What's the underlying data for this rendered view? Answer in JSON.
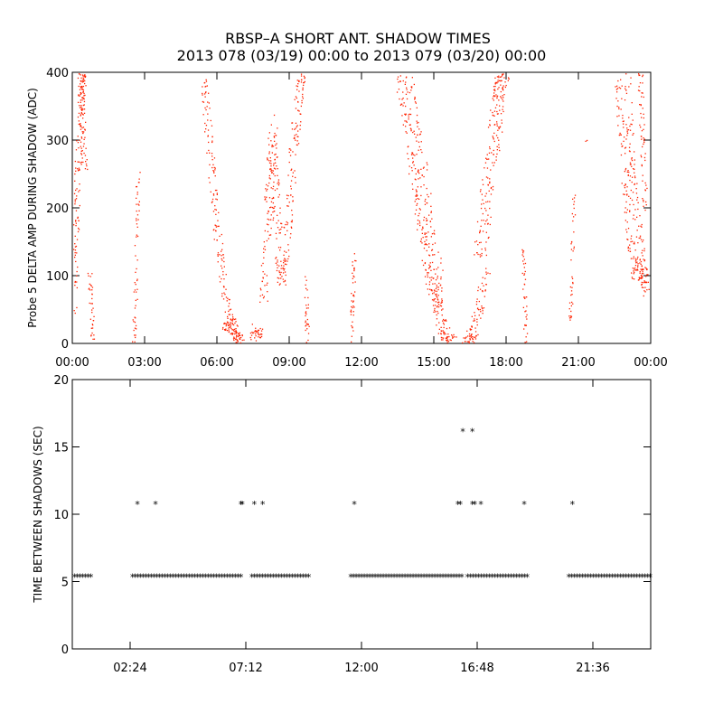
{
  "title": {
    "line1": "RBSP–A SHORT ANT. SHADOW TIMES",
    "line2": "2013 078 (03/19) 00:00 to 2013 079 (03/20) 00:00"
  },
  "chart_data": [
    {
      "type": "scatter",
      "ylabel": "Probe 5 DELTA AMP DURING SHADOW (ADC)",
      "xlabel": "",
      "x_unit": "hours",
      "xlim": [
        0,
        24
      ],
      "ylim": [
        0,
        400
      ],
      "xticks": [
        0,
        3,
        6,
        9,
        12,
        15,
        18,
        21,
        24
      ],
      "xtick_labels": [
        "00:00",
        "03:00",
        "06:00",
        "09:00",
        "12:00",
        "15:00",
        "18:00",
        "21:00",
        "00:00"
      ],
      "yticks": [
        0,
        100,
        200,
        300,
        400
      ],
      "ytick_labels": [
        "0",
        "100",
        "200",
        "300",
        "400"
      ],
      "marker_color": "#ff2200",
      "tracks": [
        {
          "points": [
            [
              0.03,
              40
            ],
            [
              0.12,
              150
            ],
            [
              0.22,
              270
            ],
            [
              0.35,
              360
            ],
            [
              0.45,
              400
            ]
          ],
          "scatter": 0.5,
          "dots": 160
        },
        {
          "points": [
            [
              0.3,
              400
            ],
            [
              0.4,
              330
            ],
            [
              0.5,
              260
            ]
          ],
          "scatter": 0.5,
          "dots": 60
        },
        {
          "points": [
            [
              0.72,
              105
            ],
            [
              0.78,
              60
            ],
            [
              0.84,
              0
            ]
          ],
          "scatter": 0.35,
          "dots": 35
        },
        {
          "points": [
            [
              2.55,
              0
            ],
            [
              2.62,
              90
            ],
            [
              2.68,
              190
            ],
            [
              2.72,
              260
            ]
          ],
          "scatter": 0.3,
          "dots": 55
        },
        {
          "points": [
            [
              5.4,
              400
            ],
            [
              5.6,
              330
            ],
            [
              5.8,
              240
            ],
            [
              6.05,
              150
            ],
            [
              6.35,
              70
            ],
            [
              6.65,
              25
            ],
            [
              6.95,
              0
            ]
          ],
          "scatter": 0.6,
          "dots": 190
        },
        {
          "points": [
            [
              6.3,
              30
            ],
            [
              6.5,
              22
            ],
            [
              6.75,
              12
            ],
            [
              7.0,
              5
            ]
          ],
          "scatter": 0.55,
          "dots": 60
        },
        {
          "points": [
            [
              7.45,
              5
            ],
            [
              7.55,
              25
            ],
            [
              7.7,
              10
            ],
            [
              7.85,
              18
            ]
          ],
          "scatter": 0.55,
          "dots": 35
        },
        {
          "points": [
            [
              7.9,
              60
            ],
            [
              8.05,
              160
            ],
            [
              8.2,
              250
            ],
            [
              8.35,
              330
            ]
          ],
          "scatter": 0.7,
          "dots": 110
        },
        {
          "points": [
            [
              8.3,
              280
            ],
            [
              8.45,
              200
            ],
            [
              8.6,
              120
            ],
            [
              8.7,
              90
            ]
          ],
          "scatter": 0.7,
          "dots": 90
        },
        {
          "points": [
            [
              8.7,
              90
            ],
            [
              8.9,
              170
            ],
            [
              9.1,
              260
            ],
            [
              9.3,
              340
            ],
            [
              9.5,
              400
            ]
          ],
          "scatter": 0.7,
          "dots": 130
        },
        {
          "points": [
            [
              9.65,
              100
            ],
            [
              9.72,
              40
            ],
            [
              9.75,
              0
            ]
          ],
          "scatter": 0.3,
          "dots": 30
        },
        {
          "points": [
            [
              11.55,
              0
            ],
            [
              11.62,
              70
            ],
            [
              11.7,
              140
            ]
          ],
          "scatter": 0.3,
          "dots": 40
        },
        {
          "points": [
            [
              13.7,
              400
            ],
            [
              14.0,
              330
            ],
            [
              14.3,
              260
            ],
            [
              14.6,
              190
            ],
            [
              14.9,
              120
            ],
            [
              15.1,
              70
            ]
          ],
          "scatter": 1.4,
          "dots": 280
        },
        {
          "points": [
            [
              15.0,
              90
            ],
            [
              15.2,
              55
            ],
            [
              15.4,
              22
            ],
            [
              15.55,
              5
            ],
            [
              15.8,
              0
            ]
          ],
          "scatter": 0.9,
          "dots": 120
        },
        {
          "points": [
            [
              16.35,
              0
            ],
            [
              16.5,
              8
            ],
            [
              16.7,
              25
            ],
            [
              16.9,
              60
            ],
            [
              17.15,
              110
            ]
          ],
          "scatter": 0.8,
          "dots": 100
        },
        {
          "points": [
            [
              16.9,
              130
            ],
            [
              17.2,
              230
            ],
            [
              17.5,
              310
            ],
            [
              17.7,
              370
            ],
            [
              17.85,
              400
            ]
          ],
          "scatter": 1.1,
          "dots": 200
        },
        {
          "points": [
            [
              18.7,
              140
            ],
            [
              18.76,
              70
            ],
            [
              18.8,
              0
            ]
          ],
          "scatter": 0.3,
          "dots": 40
        },
        {
          "points": [
            [
              20.65,
              30
            ],
            [
              20.72,
              120
            ],
            [
              20.8,
              220
            ]
          ],
          "scatter": 0.3,
          "dots": 40
        },
        {
          "points": [
            [
              21.3,
              300
            ]
          ],
          "scatter": 0.2,
          "dots": 2
        },
        {
          "points": [
            [
              22.6,
              400
            ],
            [
              22.75,
              330
            ],
            [
              22.95,
              230
            ],
            [
              23.15,
              150
            ],
            [
              23.35,
              100
            ]
          ],
          "scatter": 0.6,
          "dots": 110
        },
        {
          "points": [
            [
              23.0,
              400
            ],
            [
              23.15,
              300
            ],
            [
              23.3,
              220
            ],
            [
              23.5,
              160
            ],
            [
              23.75,
              90
            ]
          ],
          "scatter": 0.6,
          "dots": 110
        },
        {
          "points": [
            [
              23.55,
              400
            ],
            [
              23.65,
              300
            ],
            [
              23.75,
              200
            ]
          ],
          "scatter": 0.4,
          "dots": 60
        },
        {
          "points": [
            [
              23.4,
              130
            ],
            [
              23.6,
              95
            ],
            [
              23.8,
              75
            ]
          ],
          "scatter": 0.5,
          "dots": 50
        }
      ]
    },
    {
      "type": "scatter",
      "ylabel": "TIME BETWEEN SHADOWS (SEC)",
      "xlabel": "",
      "x_unit": "hours",
      "xlim": [
        0,
        24
      ],
      "ylim": [
        0,
        20
      ],
      "xticks": [
        2.4,
        7.2,
        12.0,
        16.8,
        21.6
      ],
      "xtick_labels": [
        "02:24",
        "07:12",
        "12:00",
        "16:48",
        "21:36"
      ],
      "yticks": [
        0,
        5,
        10,
        15,
        20
      ],
      "ytick_labels": [
        "0",
        "5",
        "10",
        "15",
        "20"
      ],
      "marker": "*",
      "marker_color": "#000000",
      "baseline_value": 5.4,
      "baseline_ranges": [
        [
          0.1,
          0.85
        ],
        [
          2.5,
          7.1
        ],
        [
          7.45,
          9.9
        ],
        [
          11.55,
          16.25
        ],
        [
          16.4,
          18.95
        ],
        [
          20.6,
          24.0
        ]
      ],
      "points": [
        [
          2.7,
          10.8
        ],
        [
          3.45,
          10.8
        ],
        [
          7.0,
          10.8
        ],
        [
          7.05,
          10.8
        ],
        [
          7.55,
          10.8
        ],
        [
          7.9,
          10.8
        ],
        [
          11.7,
          10.8
        ],
        [
          16.0,
          10.8
        ],
        [
          16.1,
          10.8
        ],
        [
          16.6,
          10.8
        ],
        [
          16.7,
          10.8
        ],
        [
          16.95,
          10.8
        ],
        [
          18.75,
          10.8
        ],
        [
          20.75,
          10.8
        ],
        [
          16.2,
          16.2
        ],
        [
          16.6,
          16.2
        ]
      ]
    }
  ]
}
